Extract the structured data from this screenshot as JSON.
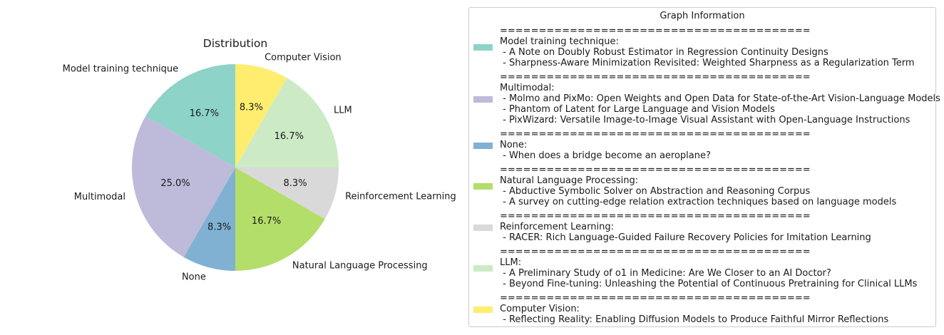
{
  "chart_data": {
    "type": "pie",
    "title": "Distribution",
    "slices": [
      {
        "label": "Model training technique",
        "value": 16.7,
        "pct_label": "16.7%",
        "color": "#8dd3c7"
      },
      {
        "label": "Multimodal",
        "value": 25.0,
        "pct_label": "25.0%",
        "color": "#bebada"
      },
      {
        "label": "None",
        "value": 8.3,
        "pct_label": "8.3%",
        "color": "#80b1d3"
      },
      {
        "label": "Natural Language Processing",
        "value": 16.7,
        "pct_label": "16.7%",
        "color": "#b3de69"
      },
      {
        "label": "Reinforcement Learning",
        "value": 8.3,
        "pct_label": "8.3%",
        "color": "#d9d9d9"
      },
      {
        "label": "LLM",
        "value": 16.7,
        "pct_label": "16.7%",
        "color": "#ccebc5"
      },
      {
        "label": "Computer Vision",
        "value": 8.3,
        "pct_label": "8.3%",
        "color": "#ffed6f"
      }
    ],
    "start_angle_deg": 90,
    "direction": "counterclockwise"
  },
  "legend": {
    "title": "Graph Information",
    "separator": "========================================",
    "entries": [
      {
        "header": "Model training technique:",
        "color": "#8dd3c7",
        "items": [
          " - A Note on Doubly Robust Estimator in Regression Continuity Designs",
          " - Sharpness-Aware Minimization Revisited: Weighted Sharpness as a Regularization Term"
        ]
      },
      {
        "header": "Multimodal:",
        "color": "#bebada",
        "items": [
          " - Molmo and PixMo: Open Weights and Open Data for State-of-the-Art Vision-Language Models",
          " - Phantom of Latent for Large Language and Vision Models",
          " - PixWizard: Versatile Image-to-Image Visual Assistant with Open-Language Instructions"
        ]
      },
      {
        "header": "None:",
        "color": "#80b1d3",
        "items": [
          " - When does a bridge become an aeroplane?"
        ]
      },
      {
        "header": "Natural Language Processing:",
        "color": "#b3de69",
        "items": [
          " - Abductive Symbolic Solver on Abstraction and Reasoning Corpus",
          " - A survey on cutting-edge relation extraction techniques based on language models"
        ]
      },
      {
        "header": "Reinforcement Learning:",
        "color": "#d9d9d9",
        "items": [
          " - RACER: Rich Language-Guided Failure Recovery Policies for Imitation Learning"
        ]
      },
      {
        "header": "LLM:",
        "color": "#ccebc5",
        "items": [
          " - A Preliminary Study of o1 in Medicine: Are We Closer to an AI Doctor?",
          " - Beyond Fine-tuning: Unleashing the Potential of Continuous Pretraining for Clinical LLMs"
        ]
      },
      {
        "header": "Computer Vision:",
        "color": "#ffed6f",
        "items": [
          " - Reflecting Reality: Enabling Diffusion Models to Produce Faithful Mirror Reflections"
        ]
      }
    ]
  }
}
